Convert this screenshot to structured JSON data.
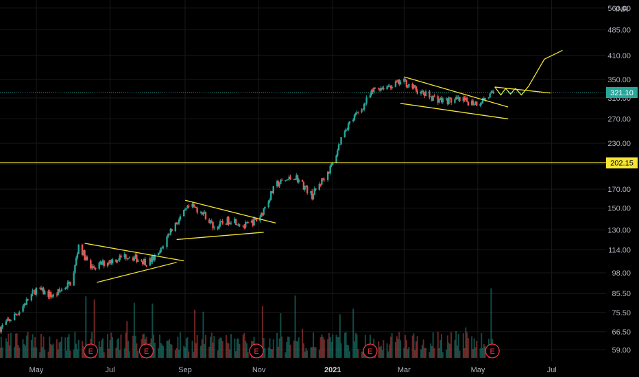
{
  "chart_data": {
    "type": "candlestick",
    "currency": "INR",
    "yscale": "log",
    "ylim": [
      56,
      580
    ],
    "y_ticks": [
      "560.00",
      "485.00",
      "410.00",
      "350.00",
      "310.00",
      "270.00",
      "230.00",
      "200.00",
      "170.00",
      "150.00",
      "130.00",
      "114.00",
      "98.00",
      "85.50",
      "75.50",
      "66.50",
      "59.00"
    ],
    "x_ticks": [
      {
        "label": "May",
        "date": "2020-05-01"
      },
      {
        "label": "Jul",
        "date": "2020-07-01"
      },
      {
        "label": "Sep",
        "date": "2020-09-01"
      },
      {
        "label": "Nov",
        "date": "2020-11-01"
      },
      {
        "label": "2021",
        "date": "2021-01-01",
        "bold": true
      },
      {
        "label": "Mar",
        "date": "2021-03-01"
      },
      {
        "label": "May",
        "date": "2021-05-01"
      },
      {
        "label": "Jul",
        "date": "2021-07-01"
      }
    ],
    "x_range": [
      "2020-04-01",
      "2021-08-15"
    ],
    "last_price": {
      "label": "321.10",
      "value": 321.1,
      "color": "#26a69a"
    },
    "horizontal_line": {
      "label": "202.15",
      "value": 202.15,
      "color": "#f5e532"
    },
    "earnings_markers": {
      "label": "E",
      "dates": [
        "2020-06-15",
        "2020-07-31",
        "2020-10-30",
        "2021-02-01",
        "2021-05-13"
      ],
      "color": "#f23645"
    },
    "price_path": [
      {
        "date": "2020-04-01",
        "close": 68
      },
      {
        "date": "2020-04-15",
        "close": 75
      },
      {
        "date": "2020-05-01",
        "close": 88
      },
      {
        "date": "2020-05-15",
        "close": 84
      },
      {
        "date": "2020-05-31",
        "close": 93
      },
      {
        "date": "2020-06-05",
        "close": 118
      },
      {
        "date": "2020-06-15",
        "close": 101
      },
      {
        "date": "2020-07-01",
        "close": 106
      },
      {
        "date": "2020-07-15",
        "close": 110
      },
      {
        "date": "2020-08-01",
        "close": 105
      },
      {
        "date": "2020-08-10",
        "close": 110
      },
      {
        "date": "2020-08-20",
        "close": 130
      },
      {
        "date": "2020-09-05",
        "close": 152
      },
      {
        "date": "2020-09-15",
        "close": 147
      },
      {
        "date": "2020-09-25",
        "close": 132
      },
      {
        "date": "2020-10-10",
        "close": 140
      },
      {
        "date": "2020-10-20",
        "close": 133
      },
      {
        "date": "2020-11-01",
        "close": 140
      },
      {
        "date": "2020-11-15",
        "close": 175
      },
      {
        "date": "2020-12-01",
        "close": 185
      },
      {
        "date": "2020-12-15",
        "close": 163
      },
      {
        "date": "2021-01-01",
        "close": 200
      },
      {
        "date": "2021-01-10",
        "close": 250
      },
      {
        "date": "2021-01-25",
        "close": 290
      },
      {
        "date": "2021-02-05",
        "close": 330
      },
      {
        "date": "2021-02-20",
        "close": 338
      },
      {
        "date": "2021-03-01",
        "close": 345
      },
      {
        "date": "2021-03-15",
        "close": 320
      },
      {
        "date": "2021-04-01",
        "close": 305
      },
      {
        "date": "2021-04-15",
        "close": 305
      },
      {
        "date": "2021-05-01",
        "close": 300
      },
      {
        "date": "2021-05-15",
        "close": 321.1
      }
    ],
    "trend_lines": [
      {
        "from": {
          "date": "2020-06-10",
          "value": 119
        },
        "to": {
          "date": "2020-08-31",
          "value": 106
        }
      },
      {
        "from": {
          "date": "2020-06-20",
          "value": 92
        },
        "to": {
          "date": "2020-08-25",
          "value": 105
        }
      },
      {
        "from": {
          "date": "2020-09-01",
          "value": 158
        },
        "to": {
          "date": "2020-11-15",
          "value": 136
        }
      },
      {
        "from": {
          "date": "2020-08-25",
          "value": 122
        },
        "to": {
          "date": "2020-11-05",
          "value": 128
        }
      },
      {
        "from": {
          "date": "2021-03-01",
          "value": 356
        },
        "to": {
          "date": "2021-05-26",
          "value": 292
        }
      },
      {
        "from": {
          "date": "2021-02-26",
          "value": 299
        },
        "to": {
          "date": "2021-05-26",
          "value": 270
        }
      },
      {
        "from": {
          "date": "2021-05-15",
          "value": 333
        },
        "to": {
          "date": "2021-06-30",
          "value": 320
        }
      }
    ],
    "projection_path": [
      {
        "date": "2021-05-15",
        "value": 333
      },
      {
        "date": "2021-05-20",
        "value": 316
      },
      {
        "date": "2021-05-24",
        "value": 330
      },
      {
        "date": "2021-05-28",
        "value": 318
      },
      {
        "date": "2021-06-01",
        "value": 330
      },
      {
        "date": "2021-06-06",
        "value": 316
      },
      {
        "date": "2021-06-12",
        "value": 335
      },
      {
        "date": "2021-06-25",
        "value": 400
      },
      {
        "date": "2021-07-10",
        "value": 424
      }
    ],
    "colors": {
      "up": "#26a69a",
      "down": "#ef5350",
      "background": "#000000",
      "grid": "#1a1a1a",
      "drawing": "#f5e532",
      "axis_text": "#b2b5be"
    },
    "grid": true
  }
}
